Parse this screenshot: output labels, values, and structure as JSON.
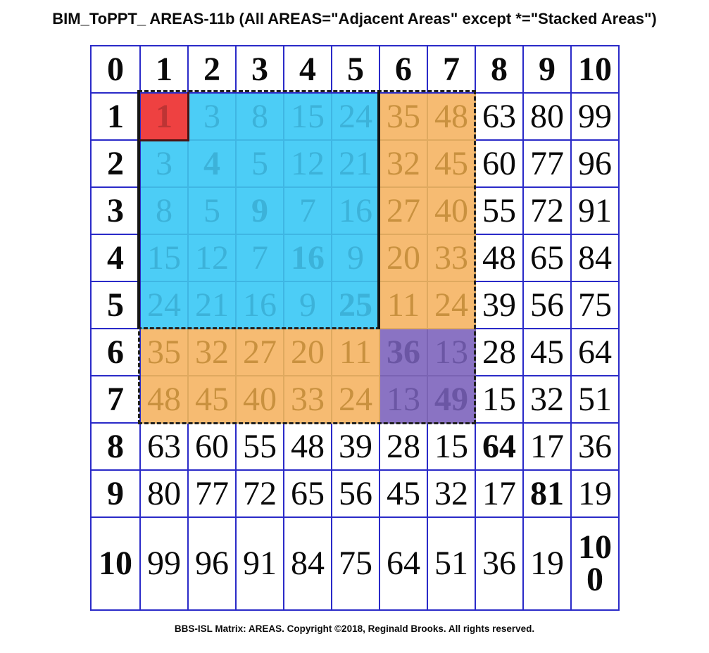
{
  "title": "BIM_ToPPT_ AREAS-11b (All AREAS=\"Adjacent Areas\" except *=\"Stacked Areas\")",
  "caption": "BBS-ISL Matrix: AREAS. Copyright ©2018, Reginald Brooks. All rights reserved.",
  "matrix": {
    "column_headers": [
      0,
      1,
      2,
      3,
      4,
      5,
      6,
      7,
      8,
      9,
      10
    ],
    "row_headers": [
      0,
      1,
      2,
      3,
      4,
      5,
      6,
      7,
      8,
      9,
      10
    ],
    "cells": [
      [
        0,
        1,
        2,
        3,
        4,
        5,
        6,
        7,
        8,
        9,
        10
      ],
      [
        1,
        1,
        3,
        8,
        15,
        24,
        35,
        48,
        63,
        80,
        99
      ],
      [
        2,
        3,
        4,
        5,
        12,
        21,
        32,
        45,
        60,
        77,
        96
      ],
      [
        3,
        8,
        5,
        9,
        7,
        16,
        27,
        40,
        55,
        72,
        91
      ],
      [
        4,
        15,
        12,
        7,
        16,
        9,
        20,
        33,
        48,
        65,
        84
      ],
      [
        5,
        24,
        21,
        16,
        9,
        25,
        11,
        24,
        39,
        56,
        75
      ],
      [
        6,
        35,
        32,
        27,
        20,
        11,
        36,
        13,
        28,
        45,
        64
      ],
      [
        7,
        48,
        45,
        40,
        33,
        24,
        13,
        49,
        15,
        32,
        51
      ],
      [
        8,
        63,
        60,
        55,
        48,
        39,
        28,
        15,
        64,
        17,
        36
      ],
      [
        9,
        80,
        77,
        72,
        65,
        56,
        45,
        32,
        17,
        81,
        19
      ],
      [
        10,
        99,
        96,
        91,
        84,
        75,
        64,
        51,
        36,
        19,
        100
      ]
    ]
  },
  "regions": [
    {
      "name": "stacked-area-red",
      "rows": [
        1,
        1
      ],
      "cols": [
        1,
        1
      ],
      "fill": "#ee4141",
      "text": "#bd3434",
      "line": "#401212"
    },
    {
      "name": "adjacent-area-cyan",
      "rows": [
        1,
        5
      ],
      "cols": [
        1,
        5
      ],
      "fill": "#4ccdf6",
      "text": "#3cb2d9",
      "line": "#3fb6e3"
    },
    {
      "name": "adjacent-area-orange-right",
      "rows": [
        1,
        5
      ],
      "cols": [
        6,
        7
      ],
      "fill": "#f6bb72",
      "text": "#c9913f",
      "line": "#dfa95f"
    },
    {
      "name": "adjacent-area-orange-bottom",
      "rows": [
        6,
        7
      ],
      "cols": [
        1,
        5
      ],
      "fill": "#f6bb72",
      "text": "#c9913f",
      "line": "#dfa95f"
    },
    {
      "name": "stacked-area-purple",
      "rows": [
        6,
        7
      ],
      "cols": [
        6,
        7
      ],
      "fill": "#8a73c3",
      "text": "#6b56a4",
      "line": "#7a63b3"
    }
  ],
  "colors": {
    "grid_line": "#2a2ac8",
    "dash_border": "#202020",
    "cyan_block_edge": "#141414",
    "red_cell_edge": "#4a1313",
    "value_text": "#0a0a0a"
  }
}
